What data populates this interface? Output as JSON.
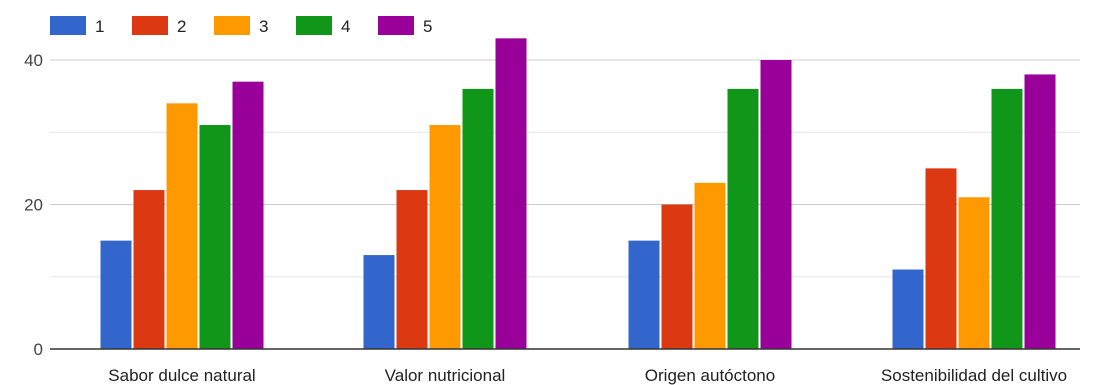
{
  "chart_data": {
    "type": "bar",
    "title": "",
    "xlabel": "",
    "ylabel": "",
    "categories": [
      "Sabor dulce natural",
      "Valor nutricional",
      "Origen autóctono",
      "Sostenibilidad del cultivo"
    ],
    "series": [
      {
        "name": "1",
        "color": "#3366cc",
        "values": [
          15,
          13,
          15,
          11
        ]
      },
      {
        "name": "2",
        "color": "#dc3912",
        "values": [
          22,
          22,
          20,
          25
        ]
      },
      {
        "name": "3",
        "color": "#ff9900",
        "values": [
          34,
          31,
          23,
          21
        ]
      },
      {
        "name": "4",
        "color": "#109618",
        "values": [
          31,
          36,
          36,
          36
        ]
      },
      {
        "name": "5",
        "color": "#990099",
        "values": [
          37,
          43,
          40,
          38
        ]
      }
    ],
    "ylim": [
      0,
      40
    ],
    "yticks": [
      0,
      20,
      40
    ],
    "grid": true,
    "legend_position": "top-left"
  }
}
